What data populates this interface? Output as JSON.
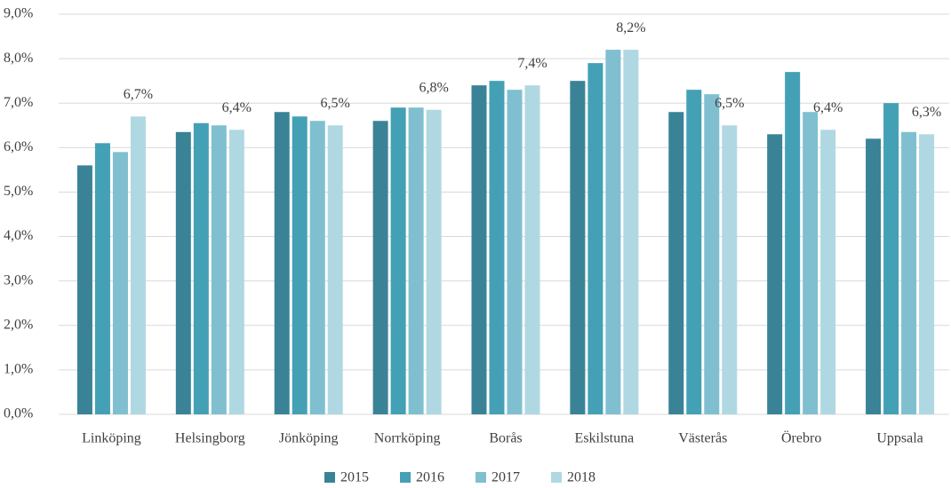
{
  "chart_data": {
    "type": "bar",
    "categories": [
      "Linköping",
      "Helsingborg",
      "Jönköping",
      "Norrköping",
      "Borås",
      "Eskilstuna",
      "Västerås",
      "Örebro",
      "Uppsala"
    ],
    "series": [
      {
        "name": "2015",
        "color": "#3a8397",
        "values": [
          5.6,
          6.35,
          6.8,
          6.6,
          7.4,
          7.5,
          6.8,
          6.3,
          6.2
        ]
      },
      {
        "name": "2016",
        "color": "#44a0b5",
        "values": [
          6.1,
          6.55,
          6.7,
          6.9,
          7.5,
          7.9,
          7.3,
          7.7,
          7.0
        ]
      },
      {
        "name": "2017",
        "color": "#7fbfd0",
        "values": [
          5.9,
          6.5,
          6.6,
          6.9,
          7.3,
          8.2,
          7.2,
          6.8,
          6.35
        ]
      },
      {
        "name": "2018",
        "color": "#b0d8e2",
        "values": [
          6.7,
          6.4,
          6.5,
          6.85,
          7.4,
          8.2,
          6.5,
          6.4,
          6.3
        ],
        "value_labels": [
          "6,7%",
          "6,4%",
          "6,5%",
          "6,8%",
          "7,4%",
          "8,2%",
          "6,5%",
          "6,4%",
          "6,3%"
        ]
      }
    ],
    "ylim": [
      0,
      9
    ],
    "yticks": [
      {
        "value": 0,
        "label": "0,0%"
      },
      {
        "value": 1,
        "label": "1,0%"
      },
      {
        "value": 2,
        "label": "2,0%"
      },
      {
        "value": 3,
        "label": "3,0%"
      },
      {
        "value": 4,
        "label": "4,0%"
      },
      {
        "value": 5,
        "label": "5,0%"
      },
      {
        "value": 6,
        "label": "6,0%"
      },
      {
        "value": 7,
        "label": "7,0%"
      },
      {
        "value": 8,
        "label": "8,0%"
      },
      {
        "value": 9,
        "label": "9,0%"
      }
    ],
    "grid": true,
    "legend": "bottom"
  }
}
